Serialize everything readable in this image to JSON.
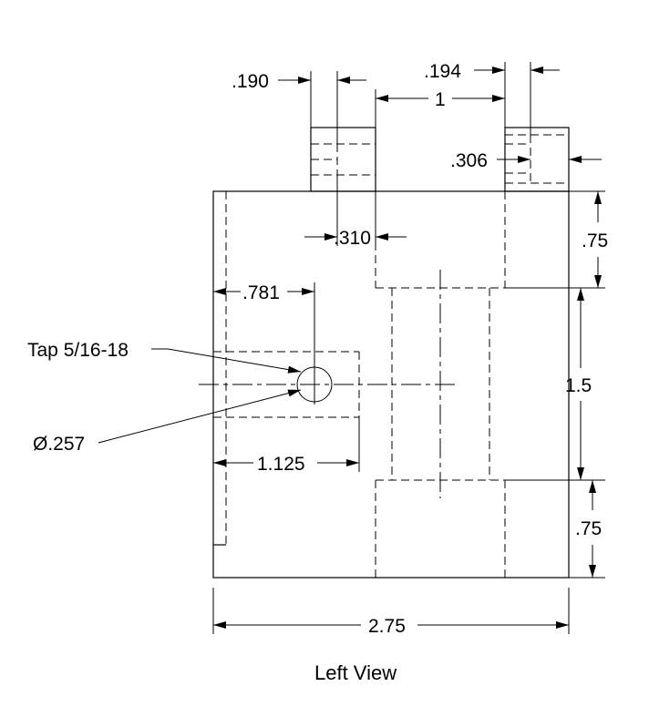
{
  "drawing": {
    "caption": "Left View",
    "edge_mark": ")",
    "dimensions": {
      "d190": ".190",
      "d194": ".194",
      "d1": "1",
      "d306": ".306",
      "d310": ".310",
      "d75_top": ".75",
      "d781": ".781",
      "d15": "1.5",
      "d1125": "1.125",
      "d75_bottom": ".75",
      "d275": "2.75"
    },
    "notes": {
      "tap": "Tap 5/16-18",
      "diameter": "Ø.257"
    },
    "colors": {
      "line": "#000000",
      "background": "#ffffff"
    }
  }
}
